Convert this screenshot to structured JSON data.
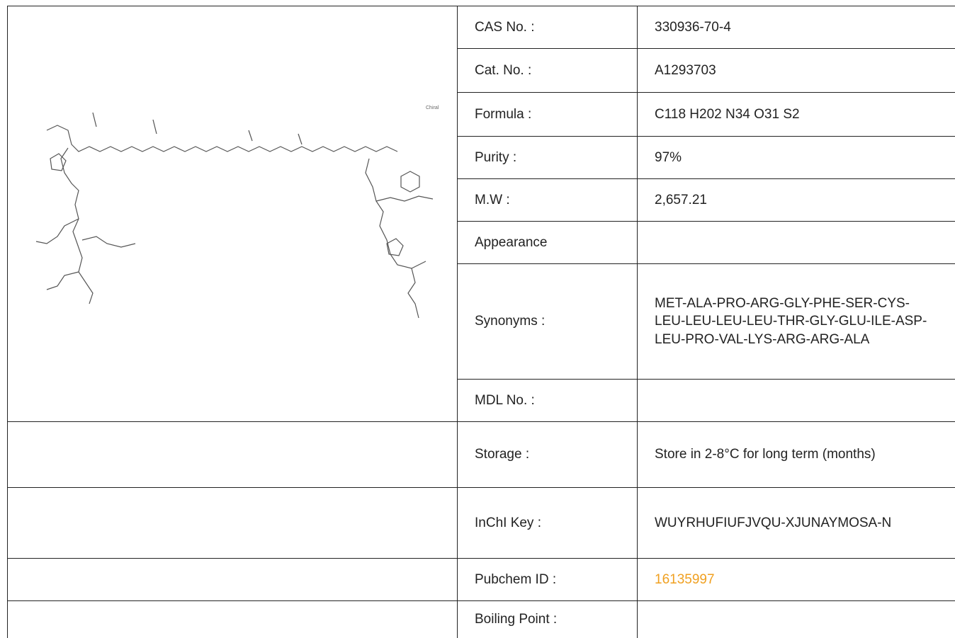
{
  "structure_label": "Chiral",
  "table": {
    "rows": [
      [
        "CAS No. :",
        "330936-70-4"
      ],
      [
        "Cat. No. :",
        "A1293703"
      ],
      [
        "Formula :",
        "C118 H202 N34 O31 S2"
      ],
      [
        "Purity :",
        "97%"
      ],
      [
        "M.W :",
        "2,657.21"
      ],
      [
        "Appearance",
        ""
      ],
      [
        "Synonyms :",
        "MET-ALA-PRO-ARG-GLY-PHE-SER-CYS-LEU-LEU-LEU-LEU-THR-GLY-GLU-ILE-ASP-LEU-PRO-VAL-LYS-ARG-ARG-ALA"
      ],
      [
        "MDL No. :",
        ""
      ],
      [
        "Storage :",
        "Store in 2-8°C for long term (months)"
      ],
      [
        "InChI Key :",
        "WUYRHUFIUFJVQU-XJUNAYMOSA-N"
      ],
      [
        "Pubchem ID :",
        "16135997"
      ],
      [
        "Boiling Point :",
        ""
      ]
    ]
  }
}
